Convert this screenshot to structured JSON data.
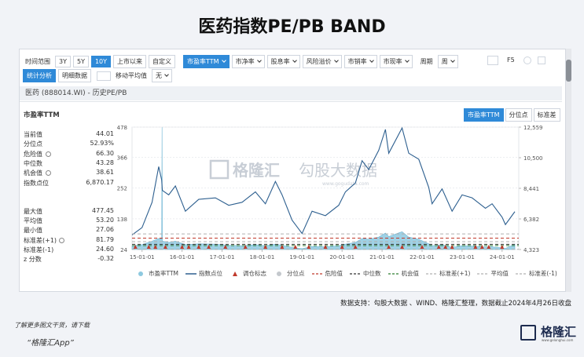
{
  "page": {
    "title": "医药指数PE/PB BAND",
    "toolbar": {
      "range_label": "时间范围",
      "ranges": [
        "3Y",
        "5Y",
        "10Y",
        "上市以来",
        "自定义"
      ],
      "metrics": [
        "市盈率TTM",
        "市净率",
        "股息率",
        "风险溢价",
        "市销率",
        "市现率"
      ],
      "period_label": "周期",
      "period": "周",
      "refresh": "F5"
    },
    "toolbar2": {
      "tabs": [
        "统计分析",
        "明细数据"
      ],
      "ma_label": "移动平均值",
      "ma": "无"
    },
    "panel_title": "医药 (888014.WI) - 历史PE/PB",
    "watermark": [
      "格隆汇",
      "勾股大数据",
      "www.gogudata.com"
    ],
    "footer": "数据支持：勾股大数据 、WIND、格隆汇整理，数据截止2024年4月26日收盘",
    "promo": [
      "了解更多图文干货，请下载",
      "“格隆汇App”"
    ],
    "logo": {
      "name": "格隆汇",
      "url": "www.gelonghui.com"
    }
  },
  "chart_data": {
    "type": "line",
    "tabs": [
      "市盈率TTM",
      "分位点",
      "标准差"
    ],
    "stats": {
      "heading": "市盈率TTM",
      "items": [
        {
          "name": "当前值",
          "value": 44.01
        },
        {
          "name": "分位点",
          "value": 52.93,
          "label": "52.93%"
        },
        {
          "name": "危险值",
          "value": 66.3,
          "label": "66.30",
          "line_color": "#c0392b"
        },
        {
          "name": "中位数",
          "value": 43.28,
          "line_color": "#333333"
        },
        {
          "name": "机会值",
          "value": 38.61,
          "line_color": "#2e7d32"
        },
        {
          "name": "指数点位",
          "value": 6870.17,
          "label": "6,870.17"
        },
        {
          "name": "最大值",
          "value": 477.45
        },
        {
          "name": "平均值",
          "value": 53.2,
          "label": "53.20",
          "line_color": "#b0b0b0"
        },
        {
          "name": "最小值",
          "value": 27.06
        },
        {
          "name": "标准差(+1)",
          "value": 81.79,
          "line_color": "#b0b0b0"
        },
        {
          "name": "标准差(-1)",
          "value": 24.6,
          "label": "24.60",
          "line_color": "#b0b0b0"
        },
        {
          "name": "z 分数",
          "value": -0.32
        }
      ]
    },
    "x": [
      "14-10-01",
      "15-01-01",
      "15-04-01",
      "15-06-01",
      "15-06-28",
      "15-07-01",
      "15-07-04",
      "15-09-01",
      "15-11-01",
      "16-02-01",
      "16-06-01",
      "16-11-01",
      "17-03-01",
      "17-07-01",
      "17-11-01",
      "18-02-01",
      "18-05-01",
      "18-07-01",
      "18-10-01",
      "19-01-01",
      "19-04-01",
      "19-08-01",
      "19-12-01",
      "20-02-01",
      "20-05-01",
      "20-07-01",
      "20-09-01",
      "20-12-01",
      "21-02-01",
      "21-03-01",
      "21-07-01",
      "21-09-01",
      "21-12-01",
      "22-03-01",
      "22-04-01",
      "22-07-01",
      "22-10-01",
      "23-01-01",
      "23-04-01",
      "23-08-01",
      "23-10-01",
      "24-01-01",
      "24-02-01",
      "24-04-26"
    ],
    "series": [
      {
        "name": "市盈率TTM",
        "color": "#8ec9e0",
        "style": "area",
        "values": [
          38,
          42,
          55,
          65,
          63,
          477.45,
          55,
          50,
          55,
          42,
          45,
          44,
          40,
          38,
          42,
          38,
          44,
          40,
          32,
          27.06,
          35,
          34,
          38,
          44,
          50,
          65,
          62,
          70,
          85,
          72,
          90,
          70,
          62,
          45,
          38,
          42,
          32,
          38,
          37,
          33,
          34,
          30,
          28,
          44.01
        ]
      },
      {
        "name": "指数点位",
        "color": "#2d5f8f",
        "axis": "y2",
        "values": [
          5300,
          5800,
          7500,
          9900,
          9000,
          8600,
          8300,
          8000,
          8600,
          6900,
          7700,
          7800,
          7300,
          7500,
          8200,
          7400,
          8900,
          8000,
          6300,
          5400,
          6900,
          6600,
          7300,
          8200,
          8800,
          10300,
          9700,
          11000,
          12400,
          10800,
          12500,
          10800,
          10400,
          8500,
          7400,
          8400,
          6900,
          8000,
          7800,
          7100,
          7400,
          6500,
          6000,
          6870.17
        ]
      }
    ],
    "markers": {
      "name": "调仓标志",
      "color": "#c0392b",
      "x": [
        "14-11-01",
        "15-03-01",
        "15-05-01",
        "15-08-01",
        "16-01-01",
        "16-03-01",
        "16-06-01",
        "16-09-01",
        "17-02-01",
        "17-08-01",
        "18-02-01",
        "18-07-01",
        "18-11-01",
        "19-03-01",
        "19-08-01",
        "20-01-01",
        "20-05-01",
        "21-03-01",
        "21-07-01",
        "22-01-01",
        "22-06-01",
        "22-08-01",
        "22-10-01",
        "23-05-01",
        "23-07-01",
        "23-09-01",
        "24-01-01"
      ]
    },
    "xlim": [
      "14-10-01",
      "24-06-01"
    ],
    "xticks": [
      "15-01-01",
      "16-01-01",
      "17-01-01",
      "18-01-01",
      "19-01-01",
      "20-01-01",
      "21-01-01",
      "22-01-01",
      "23-01-01",
      "24-01-01"
    ],
    "ylim": [
      24,
      478
    ],
    "yticks": [
      24,
      138,
      252,
      366,
      478
    ],
    "y2lim": [
      4323,
      12559
    ],
    "y2ticks": [
      {
        "value": 4323,
        "label": "4,323"
      },
      {
        "value": 6382,
        "label": "6,382"
      },
      {
        "value": 8441,
        "label": "8,441"
      },
      {
        "value": 10500,
        "label": "10,500"
      },
      {
        "value": 12559,
        "label": "12,559"
      }
    ],
    "grid": true
  }
}
